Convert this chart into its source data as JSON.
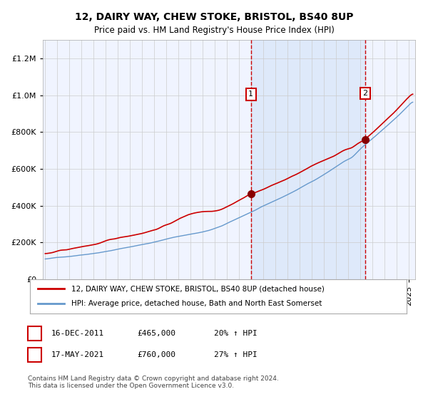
{
  "title": "12, DAIRY WAY, CHEW STOKE, BRISTOL, BS40 8UP",
  "subtitle": "Price paid vs. HM Land Registry's House Price Index (HPI)",
  "legend_line1": "12, DAIRY WAY, CHEW STOKE, BRISTOL, BS40 8UP (detached house)",
  "legend_line2": "HPI: Average price, detached house, Bath and North East Somerset",
  "sale1_date": "16-DEC-2011",
  "sale1_price": 465000,
  "sale1_hpi": "20% ↑ HPI",
  "sale2_date": "17-MAY-2021",
  "sale2_price": 760000,
  "sale2_hpi": "27% ↑ HPI",
  "footnote": "Contains HM Land Registry data © Crown copyright and database right 2024.\nThis data is licensed under the Open Government Licence v3.0.",
  "ylim": [
    0,
    1300000
  ],
  "sale1_x": 2011.96,
  "sale2_x": 2021.38,
  "red_line_color": "#cc0000",
  "blue_line_color": "#6699cc",
  "background_color": "#ddeeff",
  "plot_bg": "#f8f8f8",
  "grid_color": "#cccccc"
}
